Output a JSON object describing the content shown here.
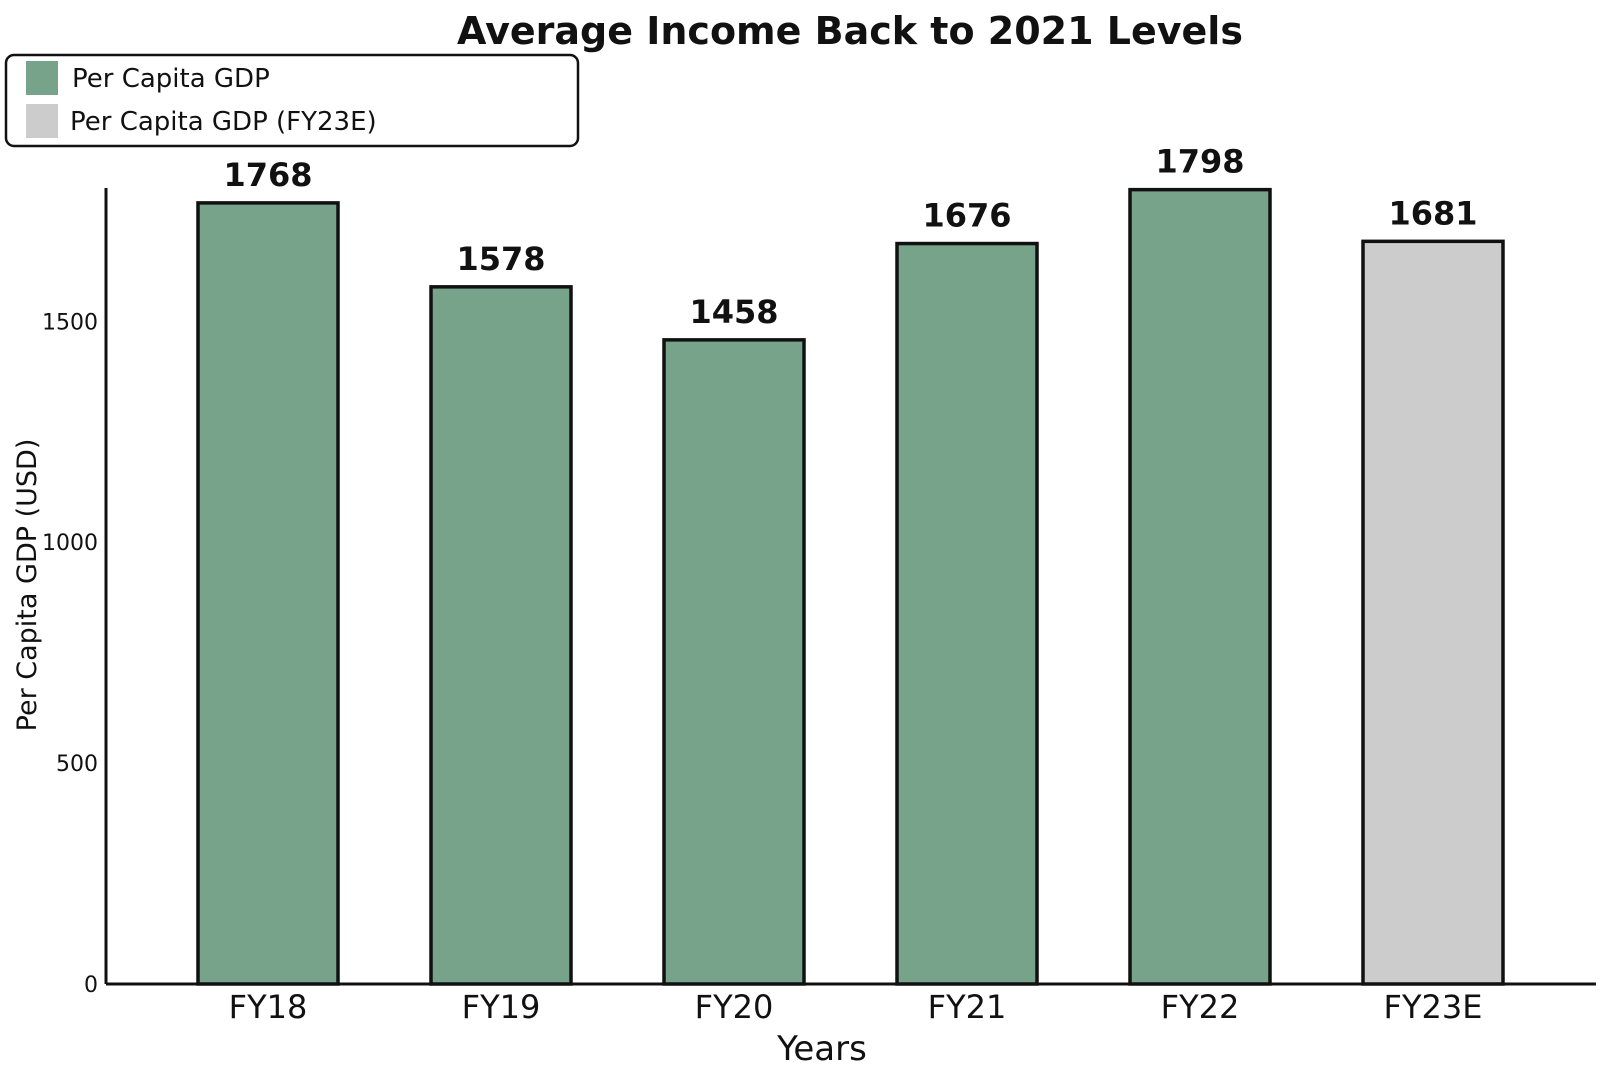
{
  "chart_data": {
    "type": "bar",
    "title": "Average Income Back to 2021 Levels",
    "xlabel": "Years",
    "ylabel": "Per Capita GDP (USD)",
    "categories": [
      "FY18",
      "FY19",
      "FY20",
      "FY21",
      "FY22",
      "FY23E"
    ],
    "values": [
      1768,
      1578,
      1458,
      1676,
      1798,
      1681
    ],
    "bar_colors": [
      "#77a38b",
      "#77a38b",
      "#77a38b",
      "#77a38b",
      "#77a38b",
      "#cccccc"
    ],
    "yticks": [
      0,
      500,
      1000,
      1500
    ],
    "ylim": [
      0,
      1800
    ],
    "grid": false,
    "legend_position": "top-left",
    "legend": [
      {
        "label": "Per Capita GDP",
        "color": "#77a38b"
      },
      {
        "label": "Per Capita GDP (FY23E)",
        "color": "#cccccc"
      }
    ]
  }
}
